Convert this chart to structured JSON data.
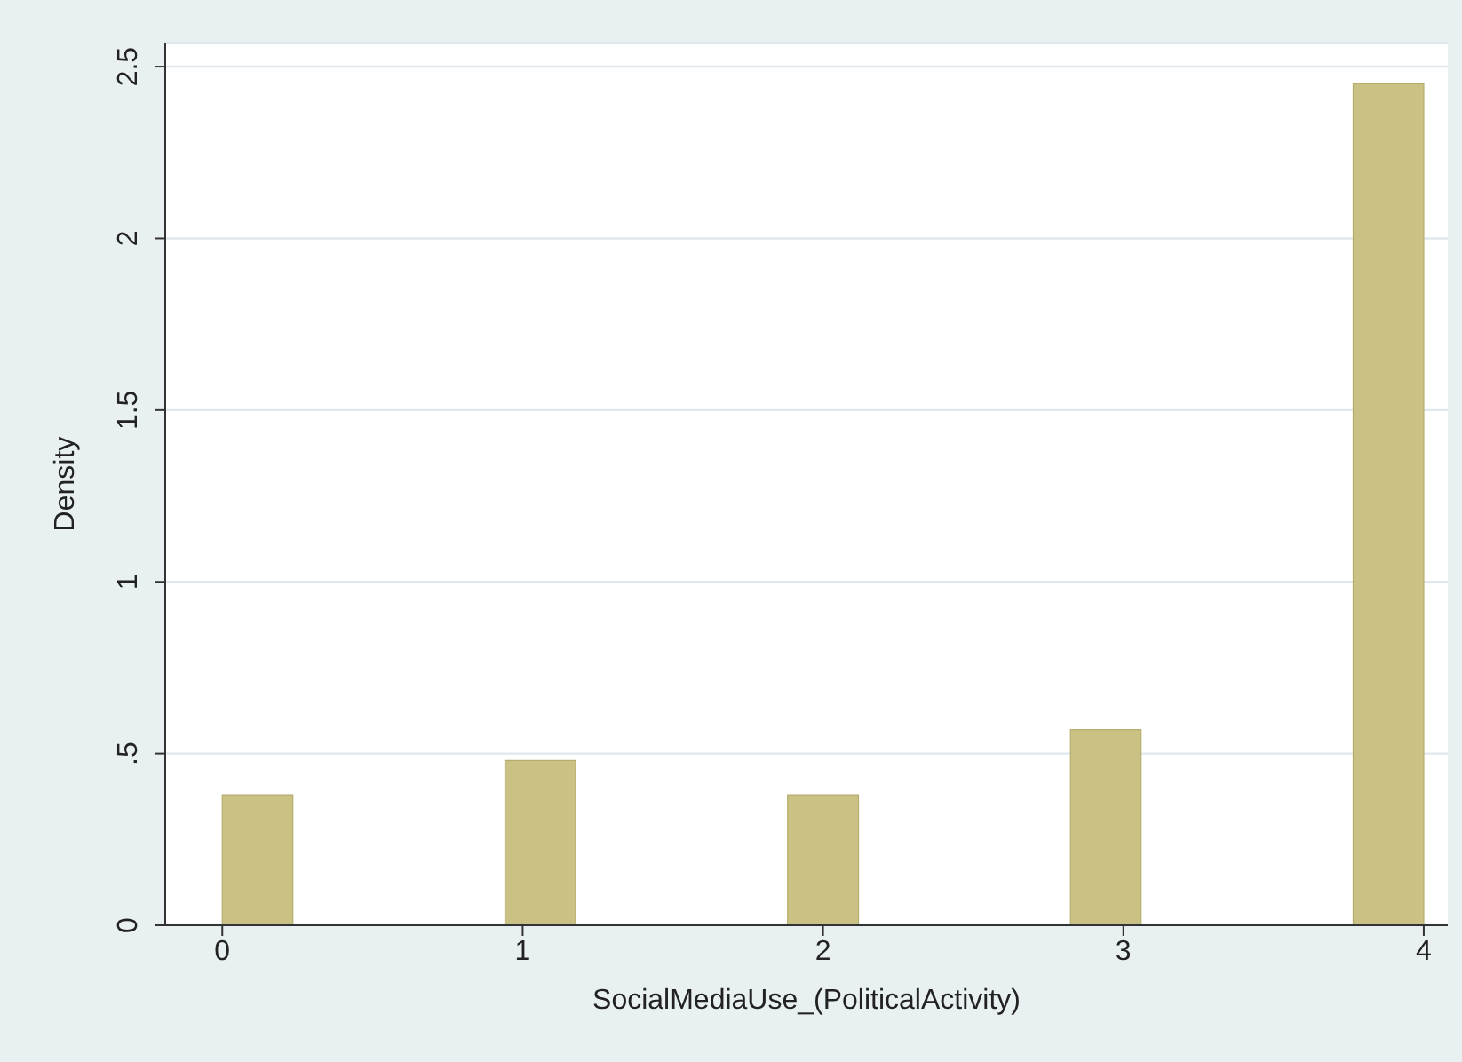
{
  "chart_data": {
    "type": "histogram",
    "xlabel": "SocialMediaUse_(PoliticalActivity)",
    "ylabel": "Density",
    "bins": [
      0,
      0.235,
      0.471,
      0.706,
      0.941,
      1.176,
      1.412,
      1.647,
      1.882,
      2.118,
      2.353,
      2.588,
      2.824,
      3.059,
      3.294,
      3.529,
      3.765,
      4
    ],
    "values": [
      0.38,
      0,
      0,
      0,
      0.48,
      0,
      0,
      0,
      0.38,
      0,
      0,
      0,
      0.57,
      0,
      0,
      0,
      2.45
    ],
    "color": "#c9c284",
    "xlim": [
      -0.19,
      4.08
    ],
    "xticks": [
      0,
      1,
      2,
      3,
      4
    ],
    "ylim": [
      0,
      2.57
    ],
    "yticks": [
      0,
      {
        "value": 0.5,
        "label": ".5"
      },
      1,
      1.5,
      2,
      2.5
    ],
    "grid": "y"
  }
}
